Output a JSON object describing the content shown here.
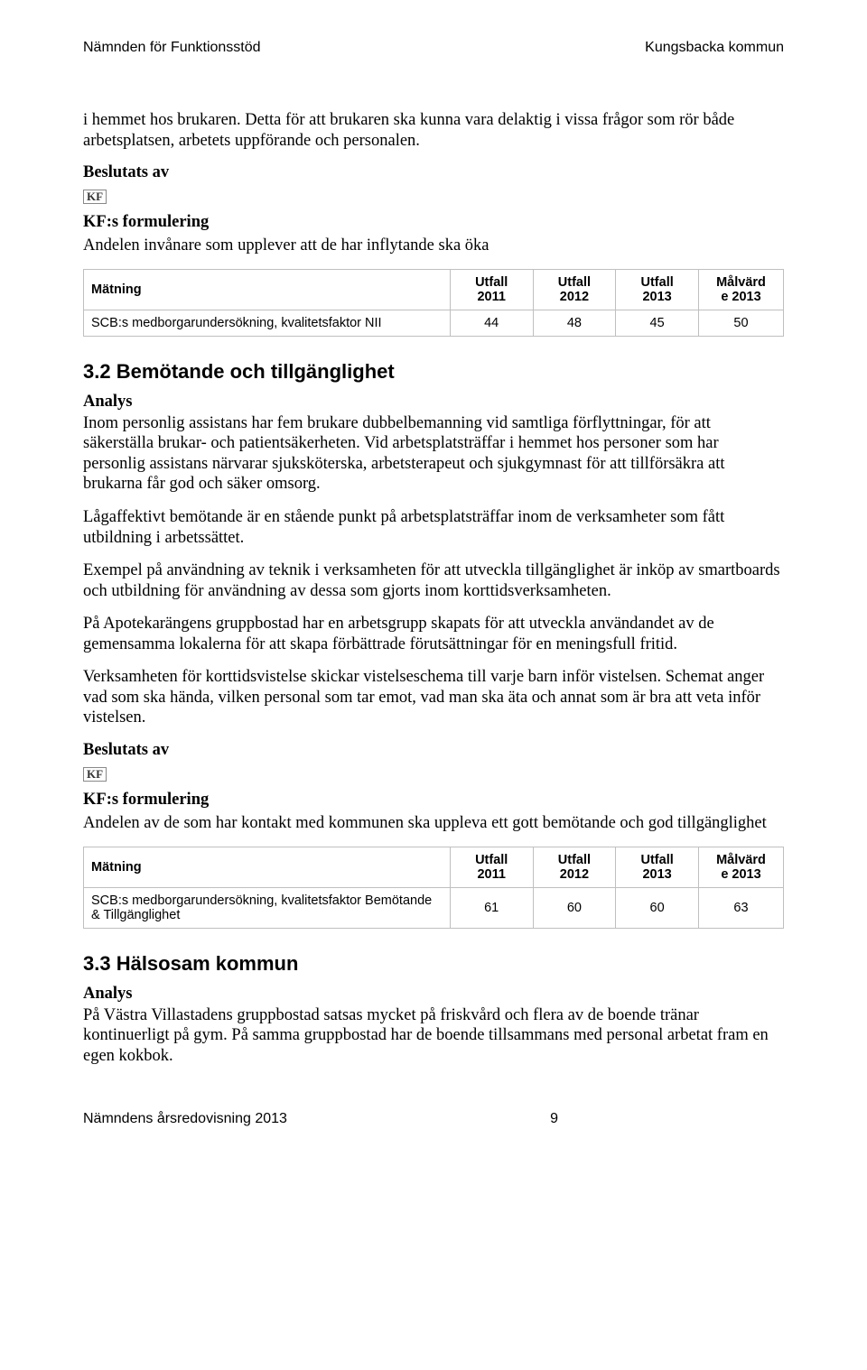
{
  "header": {
    "left": "Nämnden för Funktionsstöd",
    "right": "Kungsbacka kommun"
  },
  "intro_p": "i hemmet hos brukaren. Detta för att brukaren ska kunna vara delaktig i vissa frågor som rör både arbetsplatsen, arbetets uppförande och personalen.",
  "beslutats_av": "Beslutats av",
  "kf_glyph": "KF",
  "kf_formulering_label": "KF:s formulering",
  "kf_formulering_1": "Andelen invånare som upplever att de har inflytande ska öka",
  "table_headers": {
    "metric": "Mätning",
    "c1a": "Utfall",
    "c1b": "2011",
    "c2a": "Utfall",
    "c2b": "2012",
    "c3a": "Utfall",
    "c3b": "2013",
    "c4a": "Målvärd",
    "c4b": "e 2013"
  },
  "table1_row": {
    "label": "SCB:s medborgarundersökning, kvalitetsfaktor NII",
    "v1": "44",
    "v2": "48",
    "v3": "45",
    "v4": "50"
  },
  "section32_title": "3.2  Bemötande och tillgänglighet",
  "analys_label": "Analys",
  "p32_1": "Inom personlig assistans har fem brukare dubbelbemanning vid samtliga förflyttningar, för att säkerställa brukar- och patientsäkerheten. Vid arbetsplatsträffar i hemmet hos personer som har personlig assistans närvarar sjuksköterska, arbetsterapeut och sjukgymnast för att tillförsäkra att brukarna får god och säker omsorg.",
  "p32_2": "Lågaffektivt bemötande är en stående punkt på arbetsplatsträffar inom de verksamheter som fått utbildning i arbetssättet.",
  "p32_3": "Exempel på användning av teknik i verksamheten för att utveckla tillgänglighet är inköp av smartboards och utbildning för användning av dessa som gjorts inom korttidsverksamheten.",
  "p32_4": "På Apotekarängens gruppbostad har en arbetsgrupp skapats för att utveckla användandet av de gemensamma lokalerna för att skapa förbättrade förutsättningar för en meningsfull fritid.",
  "p32_5": "Verksamheten för korttidsvistelse skickar vistelseschema till varje barn inför vistelsen. Schemat anger vad som ska hända, vilken personal som tar emot, vad man ska äta och annat som är bra att veta inför vistelsen.",
  "kf_formulering_2": "Andelen av de som har kontakt med kommunen ska uppleva ett gott bemötande och god tillgänglighet",
  "table2_row": {
    "label": "SCB:s medborgarundersökning, kvalitetsfaktor Bemötande & Tillgänglighet",
    "v1": "61",
    "v2": "60",
    "v3": "60",
    "v4": "63"
  },
  "section33_title": "3.3  Hälsosam kommun",
  "p33_1": "På Västra Villastadens gruppbostad satsas mycket på friskvård och flera av de boende tränar kontinuerligt på gym. På samma gruppbostad har de boende tillsammans med personal arbetat fram en egen kokbok.",
  "footer": {
    "left": "Nämndens årsredovisning 2013",
    "pagenum": "9"
  }
}
